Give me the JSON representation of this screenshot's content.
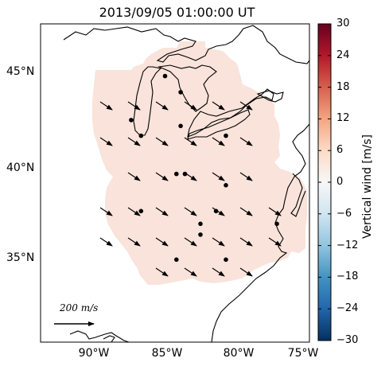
{
  "title": "2013/09/05 01:00:00 UT",
  "lat_ticks": [
    "45°N",
    "40°N",
    "35°N"
  ],
  "lon_ticks": [
    "90°W",
    "85°W",
    "80°W",
    "75°W"
  ],
  "colorbar": {
    "label": "Vertical wind [m/s]",
    "ticks": [
      "30",
      "24",
      "18",
      "12",
      "6",
      "0",
      "−6",
      "−12",
      "−18",
      "−24",
      "−30"
    ],
    "range": [
      -30,
      30
    ],
    "colormap": "RdBu_r",
    "colors": [
      "#053061",
      "#2166ac",
      "#4393c3",
      "#92c5de",
      "#d1e5f0",
      "#f7f7f7",
      "#fddbc7",
      "#f4a582",
      "#d6604d",
      "#b2182b",
      "#67001f"
    ]
  },
  "field_color": "#f9e3da",
  "reference_arrow_label": "200 m/s",
  "map_extent": {
    "lon": [
      -94,
      -75
    ],
    "lat": [
      30.5,
      47.5
    ]
  },
  "wind_vectors_direction": "southeastward",
  "station_lonlat": [
    [
      -87.6,
      42.8
    ],
    [
      -86.9,
      42.0
    ],
    [
      -85.2,
      45.0
    ],
    [
      -84.1,
      44.2
    ],
    [
      -84.1,
      42.5
    ],
    [
      -80.9,
      42.0
    ],
    [
      -84.4,
      40.0
    ],
    [
      -83.8,
      40.0
    ],
    [
      -80.9,
      39.4
    ],
    [
      -86.9,
      38.0
    ],
    [
      -81.6,
      38.0
    ],
    [
      -82.7,
      37.3
    ],
    [
      -82.7,
      36.7
    ],
    [
      -77.3,
      37.3
    ],
    [
      -84.4,
      35.3
    ],
    [
      -80.9,
      35.3
    ]
  ]
}
